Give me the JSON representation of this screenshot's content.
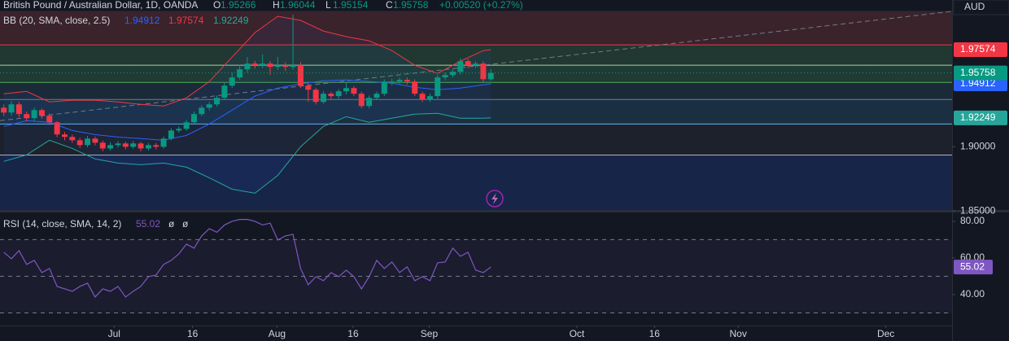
{
  "chart_data": {
    "type": "candlestick",
    "title": "British Pound / Australian Dollar, 1D, OANDA",
    "ohlc_keys": [
      "O",
      "H",
      "L",
      "C"
    ],
    "change": "+0.00520 (+0.27%)",
    "currency": "AUD",
    "up_color": "#089981",
    "down_color": "#f23645",
    "xlim": [
      -0.5,
      124.6
    ],
    "xticks": [
      {
        "value": 14.5,
        "label": "Jul"
      },
      {
        "value": 24.8,
        "label": "16"
      },
      {
        "value": 35.9,
        "label": "Aug"
      },
      {
        "value": 45.9,
        "label": "16"
      },
      {
        "value": 55.9,
        "label": "Sep"
      },
      {
        "value": 75.3,
        "label": "Oct"
      },
      {
        "value": 85.5,
        "label": "16"
      },
      {
        "value": 96.5,
        "label": "Nov"
      },
      {
        "value": 115.9,
        "label": "Dec"
      }
    ],
    "ylim": [
      1.8504,
      2.0056
    ],
    "yticks": [
      {
        "value": 1.9,
        "label": "1.90000"
      },
      {
        "value": 1.85,
        "label": "1.85000"
      }
    ],
    "open": [
      1.9305,
      1.9267,
      1.9331,
      1.9255,
      1.9223,
      1.9286,
      1.9242,
      1.9191,
      1.9096,
      1.9077,
      1.9051,
      1.9013,
      1.9064,
      1.9032,
      1.8987,
      1.9013,
      1.9026,
      1.9,
      1.9026,
      1.8987,
      1.9013,
      1.9,
      1.9064,
      1.9127,
      1.914,
      1.9191,
      1.9255,
      1.9305,
      1.9331,
      1.9382,
      1.9477,
      1.9541,
      1.9604,
      1.9649,
      1.9636,
      1.9649,
      1.9623,
      1.9636,
      1.9623,
      1.9636,
      1.9477,
      1.9445,
      1.935,
      1.9414,
      1.9395,
      1.9433,
      1.9458,
      1.9414,
      1.9318,
      1.9382,
      1.9414,
      1.9509,
      1.9509,
      1.9522,
      1.9509,
      1.9414,
      1.9369,
      1.9395,
      1.9541,
      1.956,
      1.9585,
      1.9668,
      1.9636,
      1.9649,
      1.95266
    ],
    "high": [
      1.933,
      1.9356,
      1.935,
      1.9275,
      1.9305,
      1.93,
      1.926,
      1.92,
      1.9115,
      1.9095,
      1.907,
      1.9085,
      1.908,
      1.905,
      1.9035,
      1.9045,
      1.904,
      1.9045,
      1.904,
      1.903,
      1.903,
      1.908,
      1.9145,
      1.916,
      1.921,
      1.9275,
      1.9325,
      1.935,
      1.94,
      1.95,
      1.958,
      1.964,
      1.97,
      1.967,
      1.972,
      1.9668,
      1.97,
      1.966,
      2.0031,
      1.966,
      1.9495,
      1.946,
      1.9435,
      1.943,
      1.945,
      1.95,
      1.9475,
      1.943,
      1.94,
      1.943,
      1.9525,
      1.953,
      1.954,
      1.954,
      1.9525,
      1.943,
      1.9415,
      1.956,
      1.958,
      1.9605,
      1.969,
      1.9685,
      1.9665,
      1.9668,
      1.96044
    ],
    "low": [
      1.924,
      1.9242,
      1.923,
      1.9198,
      1.92,
      1.922,
      1.917,
      1.9075,
      1.905,
      1.903,
      1.899,
      1.8995,
      1.901,
      1.8965,
      1.897,
      1.8995,
      1.898,
      1.8985,
      1.8965,
      1.897,
      1.898,
      1.8985,
      1.905,
      1.911,
      1.9125,
      1.9175,
      1.924,
      1.9285,
      1.9315,
      1.9365,
      1.946,
      1.9525,
      1.958,
      1.961,
      1.9615,
      1.956,
      1.96,
      1.959,
      1.96,
      1.946,
      1.935,
      1.933,
      1.9335,
      1.937,
      1.9375,
      1.941,
      1.9395,
      1.93,
      1.93,
      1.9365,
      1.9395,
      1.948,
      1.949,
      1.9485,
      1.9395,
      1.935,
      1.935,
      1.9375,
      1.952,
      1.954,
      1.9565,
      1.9615,
      1.9615,
      1.9505,
      1.95154
    ],
    "close": [
      1.9267,
      1.9331,
      1.9255,
      1.9223,
      1.9286,
      1.9242,
      1.9191,
      1.9096,
      1.9077,
      1.9051,
      1.9013,
      1.9064,
      1.9032,
      1.8987,
      1.9013,
      1.9026,
      1.9,
      1.9026,
      1.8987,
      1.9013,
      1.9,
      1.9064,
      1.9127,
      1.914,
      1.9191,
      1.9255,
      1.9305,
      1.9331,
      1.9382,
      1.9477,
      1.9541,
      1.9604,
      1.9649,
      1.9636,
      1.9649,
      1.9623,
      1.9636,
      1.9623,
      1.9636,
      1.9477,
      1.9445,
      1.935,
      1.9414,
      1.9395,
      1.9433,
      1.9458,
      1.9414,
      1.9318,
      1.9382,
      1.9414,
      1.9509,
      1.9509,
      1.9522,
      1.9509,
      1.9414,
      1.9369,
      1.9395,
      1.9541,
      1.956,
      1.9585,
      1.9668,
      1.9636,
      1.9649,
      1.9527,
      1.95758
    ],
    "levels": [
      1.9795,
      1.9636,
      1.9502,
      1.9369,
      1.9178,
      1.8936
    ],
    "level_colors": [
      "#f23645",
      "#a5d6a7",
      "#4caf50",
      "#787b86",
      "#64b5f6",
      "#b2b5be"
    ],
    "zone_colors": [
      "#3a232b",
      "#213731",
      "#1f3b33",
      "#1b2a38",
      "#1a3042",
      "#1d212b",
      "#172549"
    ],
    "trendline": {
      "x": [
        -0.5,
        124.6
      ],
      "values": [
        1.9204,
        2.0056
      ],
      "color": "#787b86"
    },
    "bb": {
      "name": "BB (20, SMA, close, 2.5)",
      "fill": "rgba(41,98,255,0.07)",
      "x": [
        0,
        3,
        6,
        9,
        12,
        15,
        18,
        21,
        24,
        27,
        30,
        33,
        36,
        39,
        42,
        45,
        48,
        51,
        54,
        57,
        60,
        63,
        64
      ],
      "series": [
        {
          "color": "#2962ff",
          "values": [
            1.9159,
            1.9204,
            1.9191,
            1.9127,
            1.9095,
            1.9076,
            1.9064,
            1.9051,
            1.9089,
            1.9178,
            1.9286,
            1.9395,
            1.9458,
            1.949,
            1.9515,
            1.9522,
            1.9509,
            1.9496,
            1.9464,
            1.9445,
            1.9458,
            1.9483,
            1.94912
          ]
        },
        {
          "color": "#f23645",
          "values": [
            1.9413,
            1.9432,
            1.935,
            1.9363,
            1.9363,
            1.935,
            1.9331,
            1.9318,
            1.9382,
            1.9509,
            1.97,
            1.989,
            2.0018,
            1.9986,
            1.9903,
            1.9859,
            1.9827,
            1.975,
            1.9636,
            1.9572,
            1.9668,
            1.975,
            1.97574
          ]
        },
        {
          "color": "#26a69a",
          "values": [
            1.8886,
            1.8937,
            1.9051,
            1.8987,
            1.8905,
            1.8873,
            1.886,
            1.8873,
            1.8841,
            1.8758,
            1.8669,
            1.8638,
            1.8777,
            1.9,
            1.9159,
            1.9235,
            1.9191,
            1.9223,
            1.9255,
            1.9261,
            1.9223,
            1.9223,
            1.92249
          ]
        }
      ]
    },
    "rsi": {
      "name": "RSI (14, close, SMA, 14, 2)",
      "ma_labels": [
        "ø",
        "ø"
      ],
      "color": "#7e57c2",
      "band_fill": "rgba(126,87,194,0.08)",
      "ylim": [
        23.1,
        84.4
      ],
      "yticks": [
        {
          "value": 80,
          "label": "80.00"
        },
        {
          "value": 60,
          "label": "60.00"
        },
        {
          "value": 40,
          "label": "40.00"
        }
      ],
      "levels": [
        70,
        50,
        30
      ],
      "values": [
        63.11,
        59.56,
        64.0,
        56.44,
        58.67,
        52.0,
        54.22,
        44.44,
        43.11,
        41.78,
        44.44,
        46.22,
        38.67,
        43.11,
        41.78,
        44.44,
        38.67,
        41.78,
        44.44,
        49.78,
        50.67,
        56.44,
        58.67,
        62.22,
        67.56,
        65.33,
        72.0,
        76.0,
        74.0,
        78.0,
        80.0,
        81.0,
        81.0,
        80.0,
        78.0,
        79.0,
        69.78,
        72.0,
        72.89,
        54.22,
        45.33,
        49.78,
        47.56,
        52.0,
        49.78,
        53.33,
        49.78,
        43.11,
        49.78,
        58.67,
        54.22,
        57.78,
        52.0,
        55.11,
        47.56,
        49.78,
        47.56,
        57.33,
        57.78,
        65.33,
        60.89,
        63.11,
        53.33,
        52.0,
        55.02
      ]
    }
  }
}
